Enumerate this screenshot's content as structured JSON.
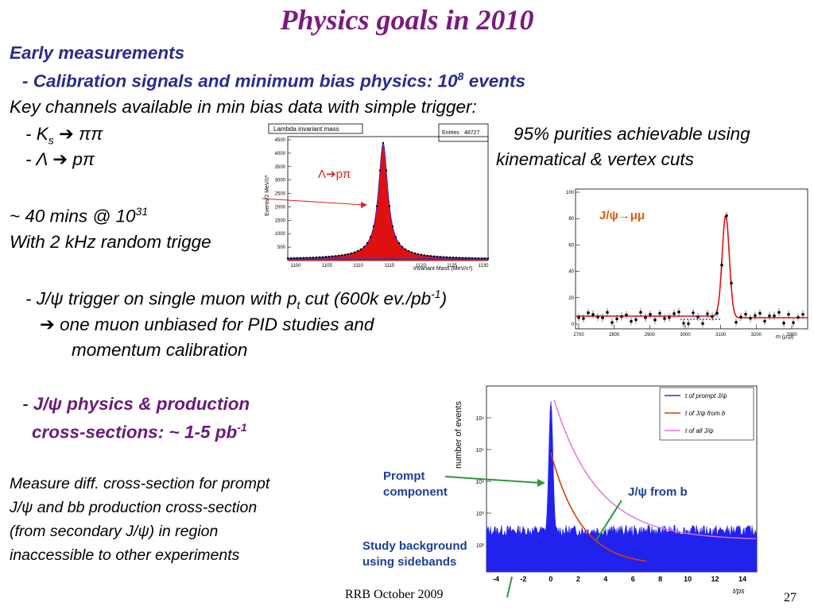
{
  "slide": {
    "title": "Physics goals in 2010",
    "early": "Early measurements",
    "calib_prefix": "- Calibration signals and minimum bias physics: 10",
    "calib_exp": "8",
    "calib_suffix": " events",
    "key_channels": "Key channels available in min bias data with simple trigger:",
    "ks_dash": "- K",
    "ks_sub": "s",
    "ks_arrow": "➔",
    "ks_decay": " ππ",
    "lambda_dash": "- Λ",
    "lambda_arrow": "➔",
    "lambda_decay": " pπ",
    "purity_line1": "95% purities achievable using",
    "purity_line2": "kinematical & vertex cuts",
    "mins_prefix": "~ 40 mins @ 10",
    "mins_exp": "31",
    "random_trigger": "With 2 kHz random trigge",
    "jpsi_trigger_prefix": "- J/ψ trigger on single muon with p",
    "jpsi_trigger_sub": "t",
    "jpsi_trigger_mid": " cut (600k ev./pb",
    "jpsi_trigger_exp": "-1",
    "jpsi_trigger_suffix": ")",
    "arrow_glyph": "➔",
    "unbiased": " one muon unbiased for PID studies and",
    "momentum": "momentum calibration",
    "phys_dash": "- ",
    "phys_line1": "J/ψ physics & production",
    "phys_line2_prefix": "cross-sections: ~ 1-5 pb",
    "phys_line2_exp": "-1",
    "measure1": "Measure diff. cross-section for  prompt",
    "measure2": "J/ψ and bb production cross-section",
    "measure3": "(from secondary J/ψ) in region",
    "measure4": "inaccessible to other experiments",
    "footer": "RRB October 2009",
    "page_number": "27"
  },
  "lambda_plot": {
    "title": "Lambda invariant mass",
    "stats_label": "Entries",
    "stats_value": "48727",
    "ylabel": "Events/2 MeV/c²",
    "xlabel": "Invariant Mass (MeV/c²)",
    "label_lambda": "Λ",
    "label_arrow": "➔",
    "label_ppi": "pπ",
    "ytick_labels": [
      "500",
      "1000",
      "1500",
      "2000",
      "2500",
      "3000",
      "3500",
      "4000",
      "4500"
    ],
    "xtick_labels": [
      "1100",
      "1105",
      "1110",
      "1115",
      "1120",
      "1125",
      "1130"
    ]
  },
  "jpsi_plot": {
    "label": "J/ψ→μμ",
    "ytick_labels": [
      "100",
      "80",
      "60",
      "40",
      "20",
      "0"
    ],
    "xtick_labels": [
      "2700",
      "2800",
      "2900",
      "3000",
      "3100",
      "3200",
      "3300"
    ],
    "xunit": "m (μ,μ)"
  },
  "time_plot": {
    "ylabel": "number of events",
    "xlabel": "t/ps",
    "legend": [
      "t of prompt J/ψ",
      "t of J/ψ  from b",
      "t of all J/ψ"
    ],
    "ytick_labels": [
      "10⁶",
      "10⁵",
      "10⁴",
      "10³",
      "10²"
    ],
    "xtick_labels": [
      "-4",
      "-2",
      "0",
      "2",
      "4",
      "6",
      "8",
      "10",
      "12",
      "14"
    ],
    "annot_prompt_1": "Prompt",
    "annot_prompt_2": "component",
    "annot_jpsib": "J/ψ from b",
    "annot_study_1": "Study background",
    "annot_study_2": "using sidebands"
  }
}
